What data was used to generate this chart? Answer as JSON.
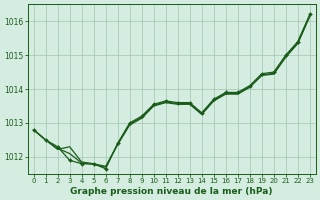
{
  "background_color": "#d4ede0",
  "grid_color": "#a8ccb8",
  "line_color": "#1a5c1a",
  "title": "Graphe pression niveau de la mer (hPa)",
  "xlim": [
    -0.5,
    23.5
  ],
  "ylim": [
    1011.5,
    1016.5
  ],
  "yticks": [
    1012,
    1013,
    1014,
    1015,
    1016
  ],
  "xticks": [
    0,
    1,
    2,
    3,
    4,
    5,
    6,
    7,
    8,
    9,
    10,
    11,
    12,
    13,
    14,
    15,
    16,
    17,
    18,
    19,
    20,
    21,
    22,
    23
  ],
  "line1_y": [
    1012.8,
    1012.5,
    1012.3,
    1011.9,
    1011.8,
    1011.8,
    1011.65,
    1012.4,
    1013.0,
    1013.2,
    1013.55,
    1013.65,
    1013.6,
    1013.6,
    1013.3,
    1013.7,
    1013.9,
    1013.9,
    1014.1,
    1014.45,
    1014.5,
    1015.0,
    1015.4,
    1016.2
  ],
  "line2_y": [
    1012.8,
    1012.5,
    1012.25,
    1012.1,
    1011.82,
    1011.78,
    1011.7,
    1012.38,
    1012.97,
    1013.17,
    1013.52,
    1013.62,
    1013.57,
    1013.57,
    1013.28,
    1013.67,
    1013.87,
    1013.87,
    1014.07,
    1014.42,
    1014.46,
    1014.97,
    1015.37,
    1016.17
  ],
  "line3_y": [
    1012.8,
    1012.5,
    1012.22,
    1012.3,
    1011.85,
    1011.8,
    1011.72,
    1012.36,
    1012.94,
    1013.14,
    1013.5,
    1013.6,
    1013.55,
    1013.55,
    1013.25,
    1013.65,
    1013.85,
    1013.85,
    1014.05,
    1014.4,
    1014.44,
    1014.94,
    1015.34,
    1016.14
  ]
}
